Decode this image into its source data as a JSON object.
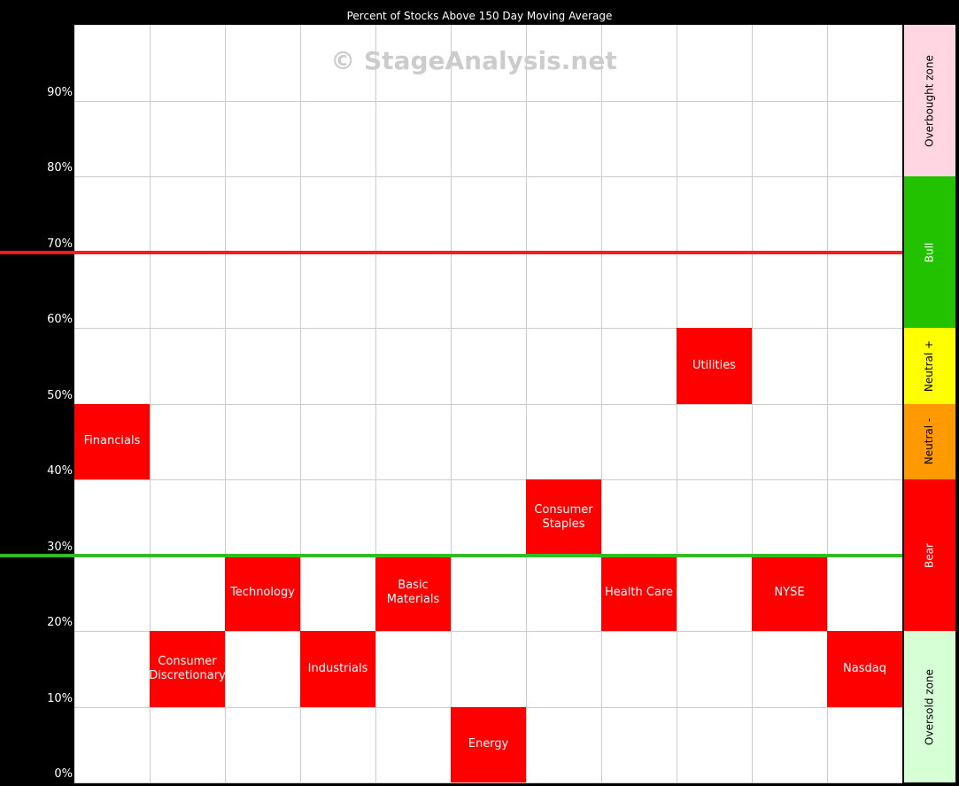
{
  "chart_data": {
    "type": "range-grid",
    "title": "Percent of Stocks Above 150 Day Moving Average",
    "watermark": "© StageAnalysis.net",
    "categories": [
      "Financials",
      "Consumer Discretionary",
      "Technology",
      "Industrials",
      "Basic Materials",
      "Energy",
      "Consumer Staples",
      "Health Care",
      "Utilities",
      "NYSE",
      "Nasdaq"
    ],
    "values": [
      [
        40,
        50
      ],
      [
        10,
        20
      ],
      [
        20,
        30
      ],
      [
        10,
        20
      ],
      [
        20,
        30
      ],
      [
        0,
        10
      ],
      [
        30,
        40
      ],
      [
        20,
        30
      ],
      [
        50,
        60
      ],
      [
        20,
        30
      ],
      [
        10,
        20
      ]
    ],
    "color": "#ff0000",
    "ylim": [
      0,
      100
    ],
    "yticks": [
      {
        "value": 0,
        "label": "0%"
      },
      {
        "value": 10,
        "label": "10%"
      },
      {
        "value": 20,
        "label": "20%"
      },
      {
        "value": 30,
        "label": "30%"
      },
      {
        "value": 40,
        "label": "40%"
      },
      {
        "value": 50,
        "label": "50%"
      },
      {
        "value": 60,
        "label": "60%"
      },
      {
        "value": 70,
        "label": "70%"
      },
      {
        "value": 80,
        "label": "80%"
      },
      {
        "value": 90,
        "label": "90%"
      }
    ],
    "grid": true,
    "reference_lines": [
      {
        "value": 70,
        "color": "#ff1a1a"
      },
      {
        "value": 30,
        "color": "#33bb22"
      }
    ],
    "zones": [
      {
        "label": "Overbought zone",
        "range": [
          80,
          100
        ],
        "color": "#ffd6e2"
      },
      {
        "label": "Bull",
        "range": [
          60,
          80
        ],
        "color": "#22c200"
      },
      {
        "label": "Neutral +",
        "range": [
          50,
          60
        ],
        "color": "#ffff00"
      },
      {
        "label": "Neutral -",
        "range": [
          40,
          50
        ],
        "color": "#ff9900"
      },
      {
        "label": "Bear",
        "range": [
          20,
          40
        ],
        "color": "#ff0000"
      },
      {
        "label": "Oversold zone",
        "range": [
          0,
          20
        ],
        "color": "#d6ffd6"
      }
    ]
  }
}
